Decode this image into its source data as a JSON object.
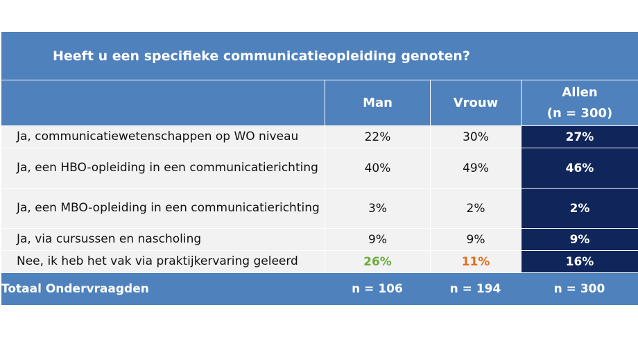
{
  "chart_data": {
    "type": "table",
    "title": "Heeft u een specifieke communicatieopleiding genoten?",
    "columns": [
      {
        "label": "Man"
      },
      {
        "label": "Vrouw"
      },
      {
        "label": "Allen",
        "sublabel": "(n = 300)"
      }
    ],
    "rows": [
      {
        "label": "Ja, communicatiewetenschappen op WO niveau",
        "values": [
          "22%",
          "30%",
          "27%"
        ]
      },
      {
        "label": "Ja, een HBO-opleiding in een communicatierichting",
        "values": [
          "40%",
          "49%",
          "46%"
        ]
      },
      {
        "label": "Ja, een MBO-opleiding in een communicatierichting",
        "values": [
          "3%",
          "2%",
          "2%"
        ]
      },
      {
        "label": "Ja, via cursussen en nascholing",
        "values": [
          "9%",
          "9%",
          "9%"
        ]
      },
      {
        "label": "Nee, ik heb het vak via praktijkervaring geleerd",
        "values": [
          "26%",
          "11%",
          "16%"
        ]
      }
    ],
    "total": {
      "label": "Totaal Ondervraagden",
      "values": [
        "n = 106",
        "n = 194",
        "n = 300"
      ]
    },
    "colors": {
      "header": "#4f81bd",
      "allen_column": "#10255a",
      "row_bg": "#f2f2f2",
      "highlight_high": "#6aaa3a",
      "highlight_low": "#e36c1e"
    }
  }
}
